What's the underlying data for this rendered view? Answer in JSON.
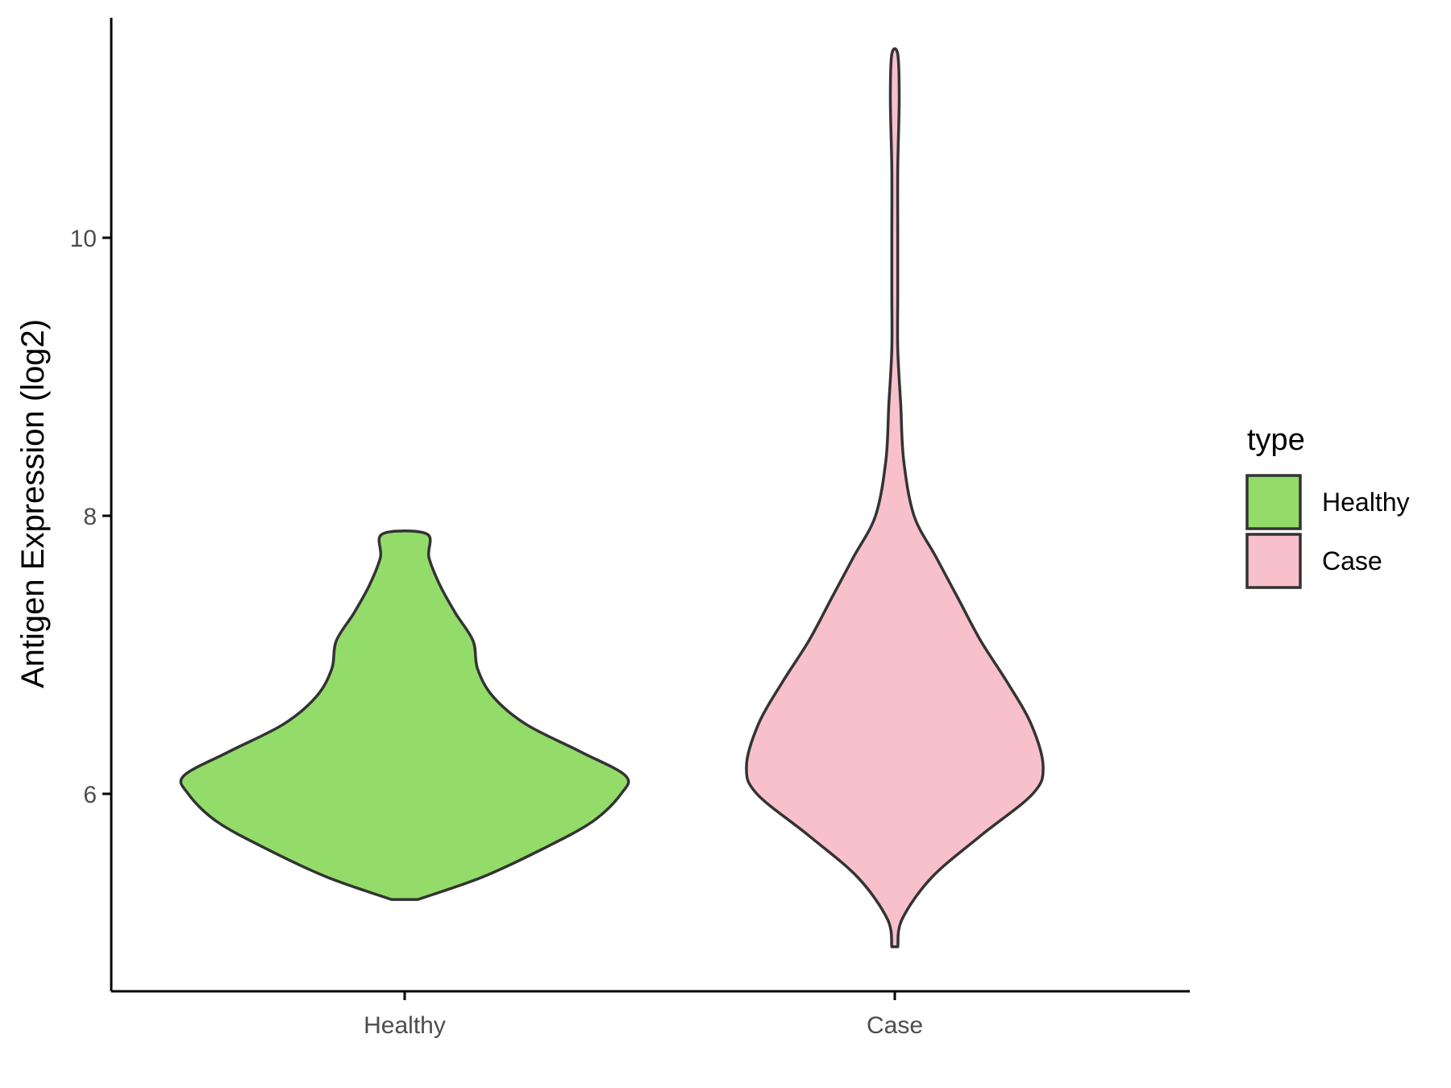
{
  "chart_data": {
    "type": "violin",
    "ylabel": "Antigen Expression (log2)",
    "xlabel": "",
    "categories": [
      "Healthy",
      "Case"
    ],
    "y_ticks": [
      6,
      8,
      10
    ],
    "ylim": [
      4.65,
      11.65
    ],
    "grid": false,
    "legend": {
      "title": "type",
      "placement": "right",
      "entries": [
        {
          "label": "Healthy",
          "color": "#93dc6a"
        },
        {
          "label": "Case",
          "color": "#f8c0cb"
        }
      ]
    },
    "outline_color": "#333333",
    "series": [
      {
        "name": "Healthy",
        "color": "#93dc6a",
        "min": 5.24,
        "max": 7.87,
        "density_profile": [
          [
            5.24,
            0.06
          ],
          [
            5.4,
            0.35
          ],
          [
            5.6,
            0.62
          ],
          [
            5.8,
            0.85
          ],
          [
            6.0,
            0.98
          ],
          [
            6.13,
            1.0
          ],
          [
            6.3,
            0.8
          ],
          [
            6.5,
            0.55
          ],
          [
            6.7,
            0.4
          ],
          [
            6.9,
            0.33
          ],
          [
            7.1,
            0.31
          ],
          [
            7.3,
            0.23
          ],
          [
            7.5,
            0.16
          ],
          [
            7.7,
            0.11
          ],
          [
            7.87,
            0.1
          ]
        ]
      },
      {
        "name": "Case",
        "color": "#f8c0cb",
        "min": 4.9,
        "max": 11.32,
        "density_profile": [
          [
            4.9,
            0.02
          ],
          [
            5.1,
            0.05
          ],
          [
            5.4,
            0.25
          ],
          [
            5.7,
            0.58
          ],
          [
            6.0,
            0.93
          ],
          [
            6.2,
            1.0
          ],
          [
            6.5,
            0.92
          ],
          [
            6.8,
            0.76
          ],
          [
            7.1,
            0.58
          ],
          [
            7.4,
            0.43
          ],
          [
            7.7,
            0.28
          ],
          [
            8.0,
            0.13
          ],
          [
            8.4,
            0.06
          ],
          [
            8.8,
            0.04
          ],
          [
            9.2,
            0.02
          ],
          [
            9.6,
            0.02
          ],
          [
            10.0,
            0.02
          ],
          [
            10.5,
            0.02
          ],
          [
            11.0,
            0.03
          ],
          [
            11.32,
            0.02
          ]
        ]
      }
    ]
  }
}
